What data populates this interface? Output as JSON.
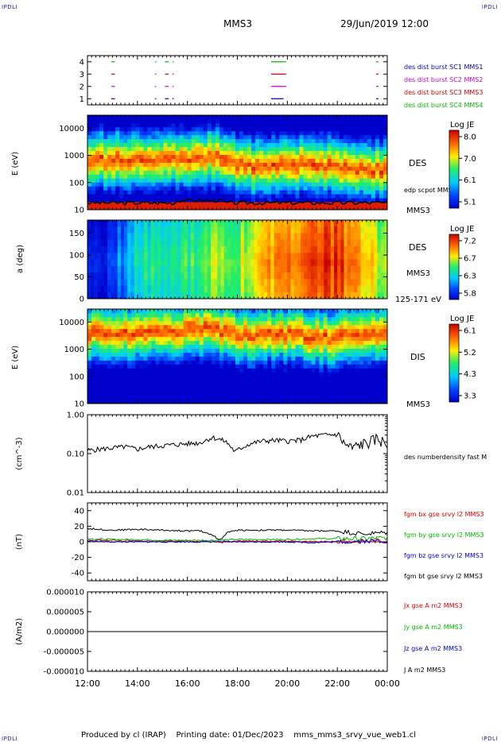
{
  "header": {
    "corner_label": "IPDLI",
    "spacecraft": "MMS3",
    "date_time": "29/Jun/2019 12:00"
  },
  "footer": {
    "produced_by": "Produced by cl (IRAP)",
    "printing_date": "Printing date: 01/Dec/2023",
    "filename": "mms_mms3_srvy_vue_web1.cl"
  },
  "time_axis": {
    "ticks": [
      "12:00",
      "14:00",
      "16:00",
      "18:00",
      "20:00",
      "22:00",
      "00:00"
    ],
    "range_hours": [
      12,
      24
    ]
  },
  "colors": {
    "mms1": "#0000cc",
    "mms2": "#cc00cc",
    "mms3": "#cc0000",
    "mms4": "#00bb00",
    "bx": "#dd0000",
    "by": "#00bb00",
    "bz": "#0000cc",
    "bt": "#000000"
  },
  "panels": {
    "burst": {
      "yticks": [
        "1",
        "2",
        "3",
        "4"
      ],
      "legend": [
        {
          "label": "des dist burst SC1 MMS1",
          "color": "#0000cc"
        },
        {
          "label": "des dist burst SC2 MMS2",
          "color": "#cc00cc"
        },
        {
          "label": "des dist burst SC3 MMS3",
          "color": "#cc0000"
        },
        {
          "label": "des dist burst SC4 MMS4",
          "color": "#00bb00"
        }
      ]
    },
    "des_energy": {
      "ylabel": "E (eV)",
      "yticks": [
        "10",
        "100",
        "1000",
        "10000"
      ],
      "instrument": "DES",
      "overlay_label": "edp scpot MMS3",
      "spacecraft": "MMS3",
      "colorbar": {
        "title": "Log JE",
        "ticks": [
          "8.0",
          "7.0",
          "6.1",
          "5.1"
        ]
      }
    },
    "des_pitch": {
      "ylabel": "a (deg)",
      "yticks": [
        "0",
        "50",
        "100",
        "150"
      ],
      "instrument": "DES",
      "spacecraft": "MMS3",
      "energy_range": "125-171 eV",
      "colorbar": {
        "title": "Log JE",
        "ticks": [
          "7.2",
          "6.7",
          "6.3",
          "5.8"
        ]
      }
    },
    "dis_energy": {
      "ylabel": "E (eV)",
      "yticks": [
        "10",
        "100",
        "1000",
        "10000"
      ],
      "instrument": "DIS",
      "spacecraft": "MMS3",
      "colorbar": {
        "title": "Log JE",
        "ticks": [
          "6.1",
          "5.2",
          "4.3",
          "3.3"
        ]
      }
    },
    "density": {
      "ylabel": "(cm^-3)",
      "yticks": [
        "0.01",
        "0.10",
        "1.00"
      ],
      "legend": "des numberdensity fast M"
    },
    "bfield": {
      "ylabel": "(nT)",
      "yticks": [
        "-40",
        "-20",
        "0",
        "20",
        "40"
      ],
      "legend": [
        {
          "label": "fgm bx gse srvy l2 MMS3",
          "color": "#dd0000"
        },
        {
          "label": "fgm by gse srvy l2 MMS3",
          "color": "#00bb00"
        },
        {
          "label": "fgm bz gse srvy l2 MMS3",
          "color": "#0000cc"
        },
        {
          "label": "fgm bt gse srvy l2 MMS3",
          "color": "#000000"
        }
      ]
    },
    "current": {
      "ylabel": "(A/m2)",
      "yticks": [
        "-0.000010",
        "-0.000005",
        "0.000000",
        "0.000005",
        "0.000010"
      ],
      "legend": [
        {
          "label": "Jx gse A m2 MMS3",
          "color": "#dd0000"
        },
        {
          "label": "Jy gse A m2 MMS3",
          "color": "#00bb00"
        },
        {
          "label": "Jz gse A m2 MMS3",
          "color": "#0000cc"
        },
        {
          "label": "J A m2 MMS3",
          "color": "#000000"
        }
      ]
    }
  },
  "chart_data": [
    {
      "type": "scatter",
      "panel": "burst",
      "note_series": "burst intervals (hours UT)",
      "series": [
        {
          "name": "des dist burst SC1 MMS1",
          "level": 1,
          "intervals": [
            [
              12.95,
              13.1
            ],
            [
              14.7,
              14.75
            ],
            [
              15.1,
              15.25
            ],
            [
              15.4,
              15.45
            ],
            [
              19.35,
              19.85
            ],
            [
              23.55,
              23.65
            ]
          ]
        },
        {
          "name": "des dist burst SC2 MMS2",
          "level": 2,
          "intervals": [
            [
              12.95,
              13.1
            ],
            [
              14.7,
              14.75
            ],
            [
              15.1,
              15.25
            ],
            [
              15.4,
              15.45
            ],
            [
              19.35,
              19.95
            ],
            [
              23.55,
              23.65
            ]
          ]
        },
        {
          "name": "des dist burst SC3 MMS3",
          "level": 3,
          "intervals": [
            [
              12.95,
              13.1
            ],
            [
              14.7,
              14.75
            ],
            [
              15.1,
              15.25
            ],
            [
              15.4,
              15.45
            ],
            [
              19.35,
              19.95
            ],
            [
              23.55,
              23.65
            ]
          ]
        },
        {
          "name": "des dist burst SC4 MMS4",
          "level": 4,
          "intervals": [
            [
              12.95,
              13.1
            ],
            [
              14.7,
              14.75
            ],
            [
              15.1,
              15.25
            ],
            [
              15.4,
              15.45
            ],
            [
              19.35,
              19.95
            ],
            [
              23.55,
              23.65
            ]
          ]
        }
      ],
      "ylim": [
        0.5,
        4.5
      ]
    },
    {
      "type": "heatmap",
      "panel": "des_energy",
      "yscale": "log",
      "ylim": [
        10,
        30000
      ],
      "zlim": [
        5.1,
        8.0
      ],
      "peak_energy_eV": [
        [
          12,
          600
        ],
        [
          13,
          700
        ],
        [
          14,
          650
        ],
        [
          15,
          800
        ],
        [
          16,
          700
        ],
        [
          17,
          900
        ],
        [
          18,
          400
        ],
        [
          19,
          400
        ],
        [
          20,
          450
        ],
        [
          21,
          500
        ],
        [
          22,
          350
        ],
        [
          23,
          300
        ],
        [
          24,
          300
        ]
      ]
    },
    {
      "type": "heatmap",
      "panel": "des_pitch",
      "ylim": [
        0,
        180
      ],
      "zlim": [
        5.8,
        7.2
      ],
      "mean_level": [
        [
          12,
          5.9
        ],
        [
          13,
          6.0
        ],
        [
          14,
          6.4
        ],
        [
          15,
          6.5
        ],
        [
          16,
          6.5
        ],
        [
          17,
          6.6
        ],
        [
          18,
          6.6
        ],
        [
          19,
          6.9
        ],
        [
          20,
          7.0
        ],
        [
          21,
          7.1
        ],
        [
          22,
          7.1
        ],
        [
          23,
          6.8
        ],
        [
          24,
          6.7
        ]
      ]
    },
    {
      "type": "heatmap",
      "panel": "dis_energy",
      "yscale": "log",
      "ylim": [
        10,
        30000
      ],
      "zlim": [
        3.3,
        6.1
      ],
      "peak_energy_eV": [
        [
          12,
          4000
        ],
        [
          13,
          4500
        ],
        [
          14,
          4000
        ],
        [
          15,
          4500
        ],
        [
          16,
          5000
        ],
        [
          17,
          6000
        ],
        [
          18,
          3000
        ],
        [
          19,
          3500
        ],
        [
          20,
          4000
        ],
        [
          21,
          3000
        ],
        [
          22,
          2500
        ],
        [
          23,
          3000
        ],
        [
          24,
          3500
        ]
      ]
    },
    {
      "type": "line",
      "panel": "density",
      "yscale": "log",
      "ylim": [
        0.01,
        1.0
      ],
      "series": [
        {
          "name": "des numberdensity fast M",
          "color": "#000000",
          "x": [
            12.0,
            12.5,
            13.0,
            13.5,
            14.0,
            14.5,
            15.0,
            15.5,
            16.0,
            16.5,
            17.0,
            17.5,
            17.9,
            18.5,
            19.0,
            19.5,
            20.0,
            20.5,
            21.0,
            21.5,
            22.0,
            22.3,
            22.6,
            23.0,
            23.3,
            23.6,
            24.0
          ],
          "y": [
            0.12,
            0.13,
            0.14,
            0.15,
            0.13,
            0.15,
            0.16,
            0.17,
            0.18,
            0.19,
            0.26,
            0.21,
            0.11,
            0.18,
            0.21,
            0.22,
            0.21,
            0.22,
            0.28,
            0.3,
            0.31,
            0.17,
            0.14,
            0.18,
            0.2,
            0.25,
            0.17
          ]
        }
      ]
    },
    {
      "type": "line",
      "panel": "bfield",
      "ylim": [
        -50,
        50
      ],
      "series": [
        {
          "name": "fgm bx gse srvy l2 MMS3",
          "color": "#dd0000",
          "x": [
            12,
            13,
            14,
            15,
            16,
            17,
            17.3,
            18,
            19,
            20,
            21,
            22,
            23,
            24
          ],
          "y": [
            2,
            2,
            1,
            1,
            1,
            1,
            -1,
            1,
            1,
            1,
            0,
            0,
            1,
            2
          ]
        },
        {
          "name": "fgm by gse srvy l2 MMS3",
          "color": "#00bb00",
          "x": [
            12,
            13,
            14,
            15,
            16,
            17,
            18,
            19,
            20,
            21,
            22,
            23,
            24
          ],
          "y": [
            4,
            3,
            3,
            2,
            2,
            2,
            3,
            3,
            3,
            4,
            4,
            4,
            5
          ]
        },
        {
          "name": "fgm bz gse srvy l2 MMS3",
          "color": "#0000cc",
          "x": [
            12,
            13,
            14,
            15,
            16,
            17,
            18,
            19,
            20,
            21,
            22,
            23,
            24
          ],
          "y": [
            1,
            0,
            0,
            0,
            0,
            0,
            0,
            0,
            0,
            -1,
            0,
            1,
            1
          ]
        },
        {
          "name": "fgm bt gse srvy l2 MMS3",
          "color": "#000000",
          "x": [
            12,
            13,
            14,
            15,
            16,
            16.5,
            17,
            17.3,
            17.6,
            18,
            19,
            20,
            21,
            22,
            23,
            24
          ],
          "y": [
            17,
            15,
            16,
            15,
            14,
            14,
            9,
            2,
            12,
            15,
            15,
            15,
            14,
            14,
            10,
            12
          ]
        }
      ]
    },
    {
      "type": "line",
      "panel": "current",
      "ylim": [
        -1e-05,
        1e-05
      ],
      "series": [
        {
          "name": "J A m2 MMS3",
          "color": "#000000",
          "x": [
            12,
            24
          ],
          "y": [
            0,
            0
          ]
        }
      ]
    }
  ]
}
